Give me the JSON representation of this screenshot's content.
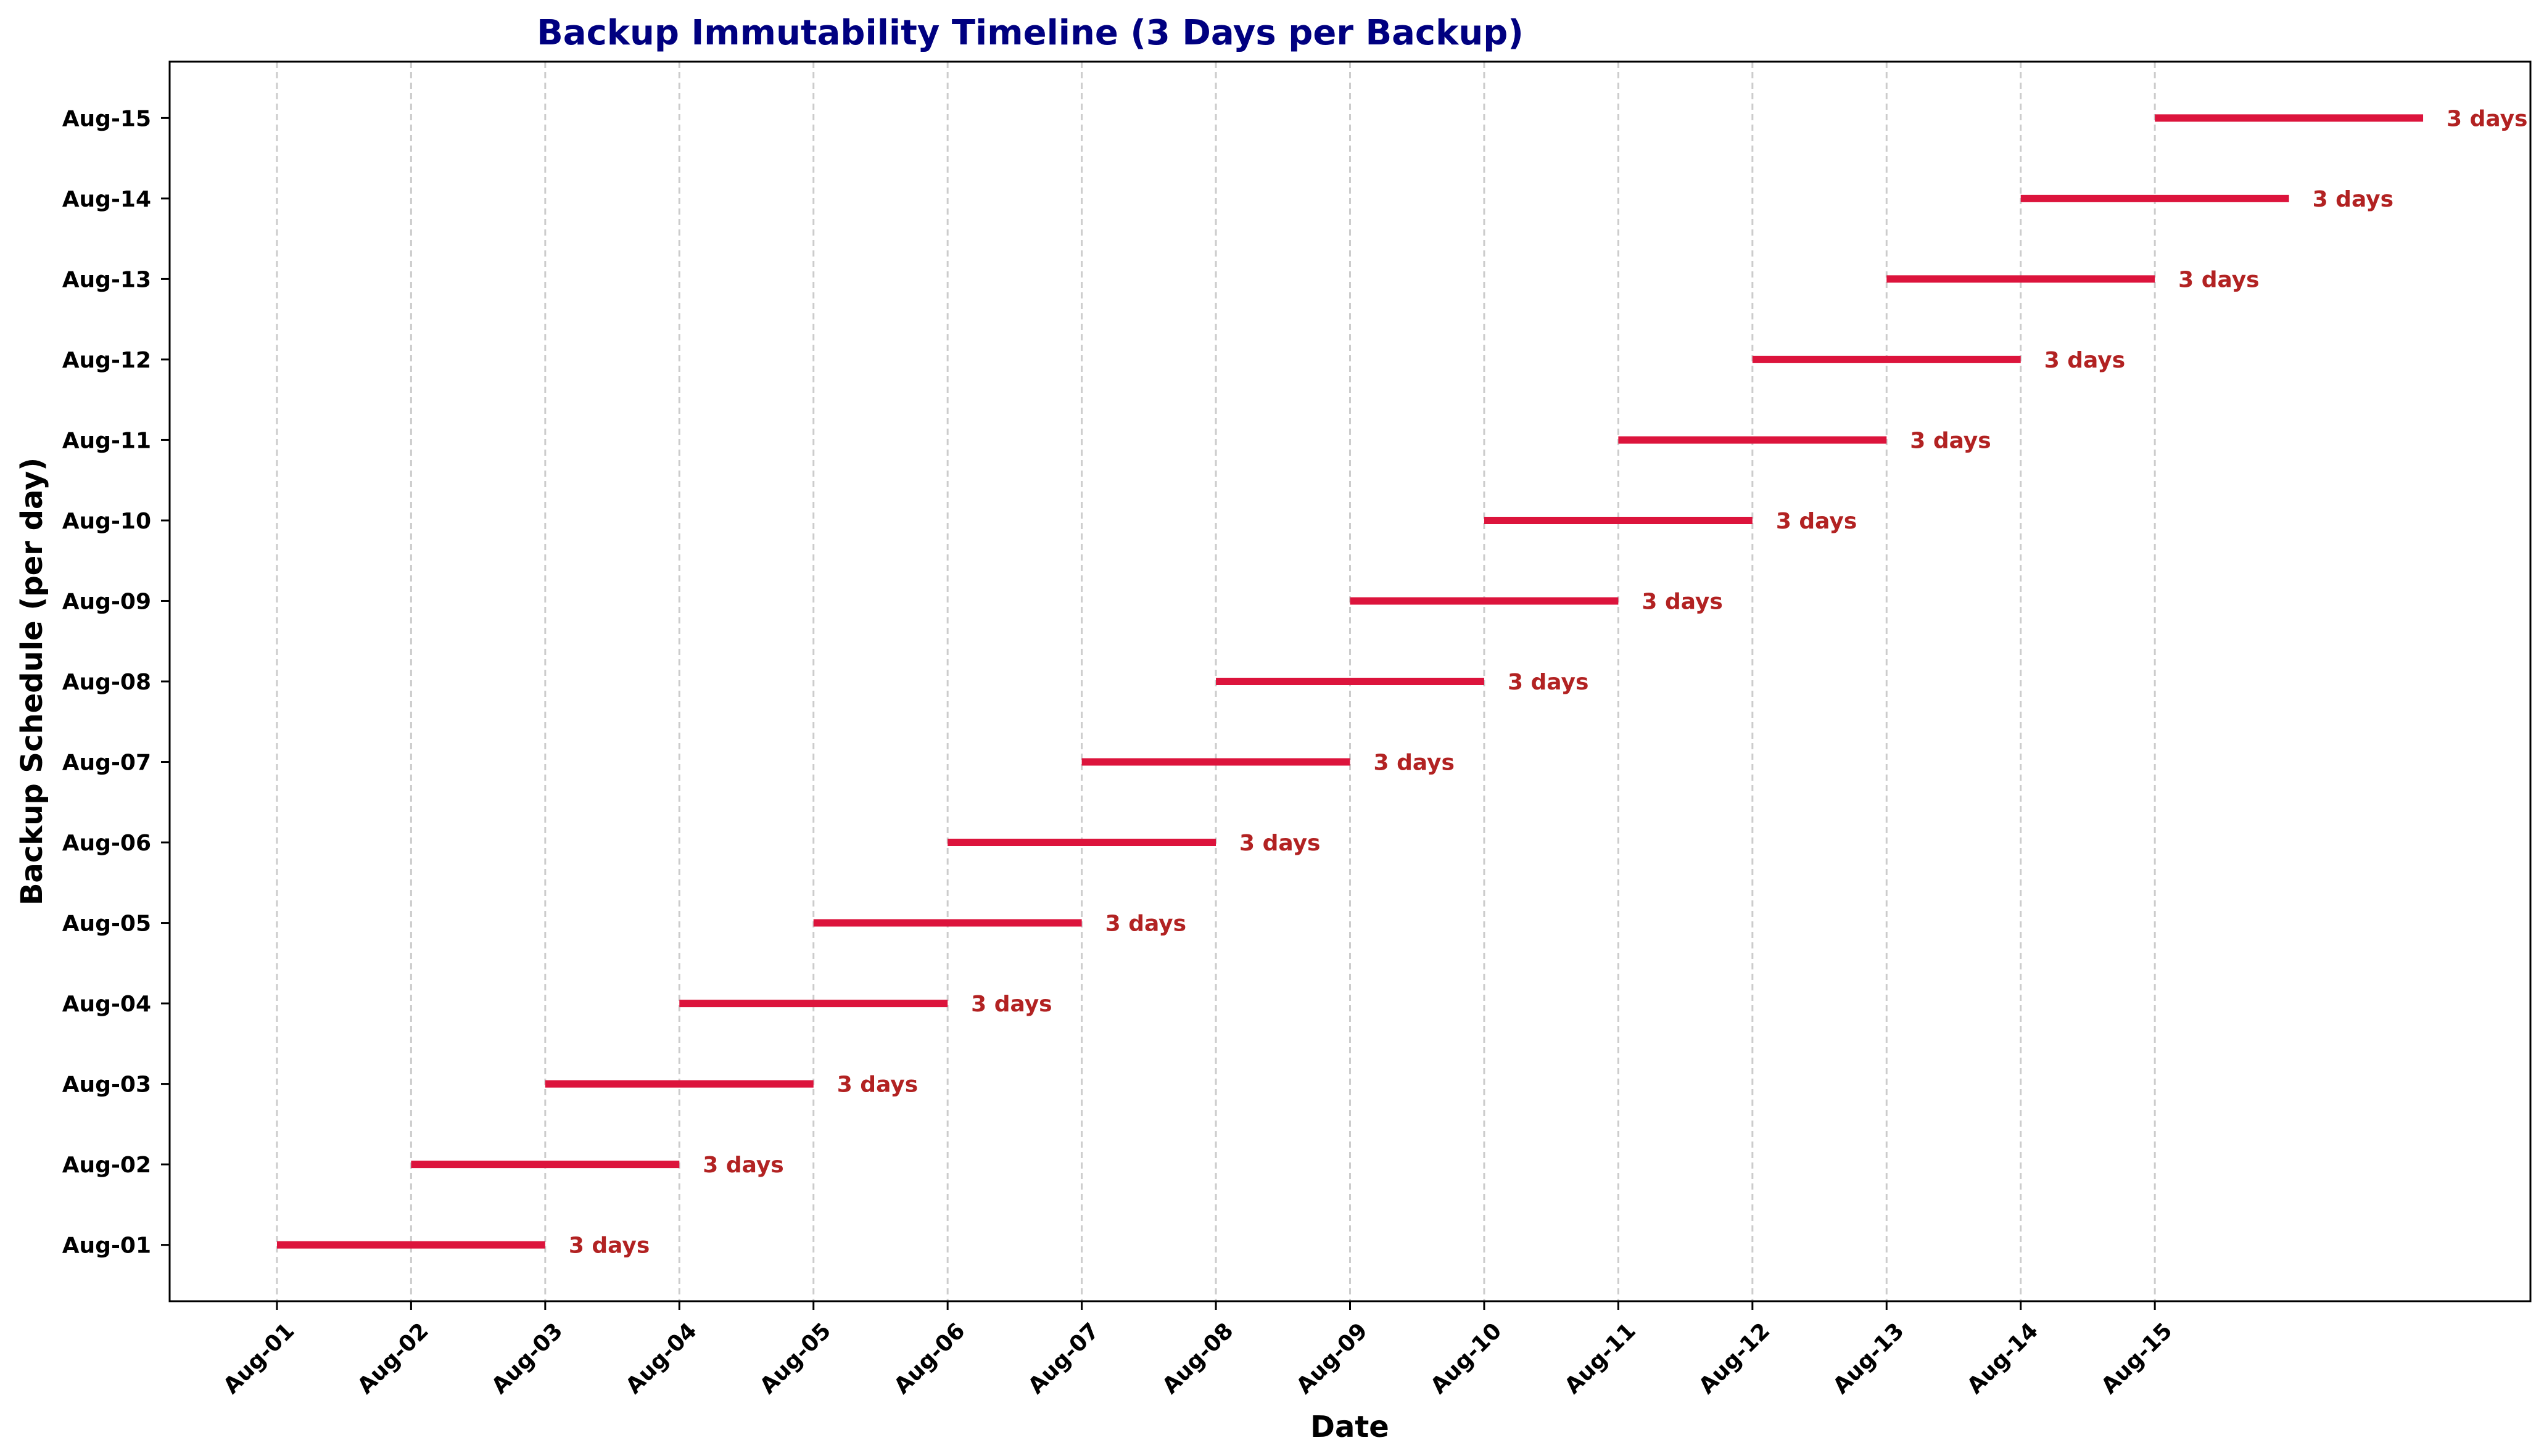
{
  "chart_data": {
    "type": "timeline",
    "title": "Backup Immutability Timeline (3 Days per Backup)",
    "xlabel": "Date",
    "ylabel": "Backup Schedule (per day)",
    "x_ticks": [
      "Aug-01",
      "Aug-02",
      "Aug-03",
      "Aug-04",
      "Aug-05",
      "Aug-06",
      "Aug-07",
      "Aug-08",
      "Aug-09",
      "Aug-10",
      "Aug-11",
      "Aug-12",
      "Aug-13",
      "Aug-14",
      "Aug-15"
    ],
    "categories": [
      "Aug-01",
      "Aug-02",
      "Aug-03",
      "Aug-04",
      "Aug-05",
      "Aug-06",
      "Aug-07",
      "Aug-08",
      "Aug-09",
      "Aug-10",
      "Aug-11",
      "Aug-12",
      "Aug-13",
      "Aug-14",
      "Aug-15"
    ],
    "series": [
      {
        "segments": [
          {
            "category": "Aug-01",
            "start": "Aug-01",
            "end": "Aug-03",
            "label": "3 days"
          },
          {
            "category": "Aug-02",
            "start": "Aug-02",
            "end": "Aug-04",
            "label": "3 days"
          },
          {
            "category": "Aug-03",
            "start": "Aug-03",
            "end": "Aug-05",
            "label": "3 days"
          },
          {
            "category": "Aug-04",
            "start": "Aug-04",
            "end": "Aug-06",
            "label": "3 days"
          },
          {
            "category": "Aug-05",
            "start": "Aug-05",
            "end": "Aug-07",
            "label": "3 days"
          },
          {
            "category": "Aug-06",
            "start": "Aug-06",
            "end": "Aug-08",
            "label": "3 days"
          },
          {
            "category": "Aug-07",
            "start": "Aug-07",
            "end": "Aug-09",
            "label": "3 days"
          },
          {
            "category": "Aug-08",
            "start": "Aug-08",
            "end": "Aug-10",
            "label": "3 days"
          },
          {
            "category": "Aug-09",
            "start": "Aug-09",
            "end": "Aug-11",
            "label": "3 days"
          },
          {
            "category": "Aug-10",
            "start": "Aug-10",
            "end": "Aug-12",
            "label": "3 days"
          },
          {
            "category": "Aug-11",
            "start": "Aug-11",
            "end": "Aug-13",
            "label": "3 days"
          },
          {
            "category": "Aug-12",
            "start": "Aug-12",
            "end": "Aug-14",
            "label": "3 days"
          },
          {
            "category": "Aug-13",
            "start": "Aug-13",
            "end": "Aug-15",
            "label": "3 days"
          },
          {
            "category": "Aug-14",
            "start": "Aug-14",
            "end": "Aug-16",
            "label": "3 days"
          },
          {
            "category": "Aug-15",
            "start": "Aug-15",
            "end": "Aug-17",
            "label": "3 days"
          }
        ]
      }
    ],
    "grid": {
      "x": true,
      "y": false,
      "style": "dashed"
    },
    "colors": {
      "bar": "#dc143c",
      "duration_label": "#b22222",
      "title": "#000080",
      "grid": "#cccccc"
    }
  }
}
